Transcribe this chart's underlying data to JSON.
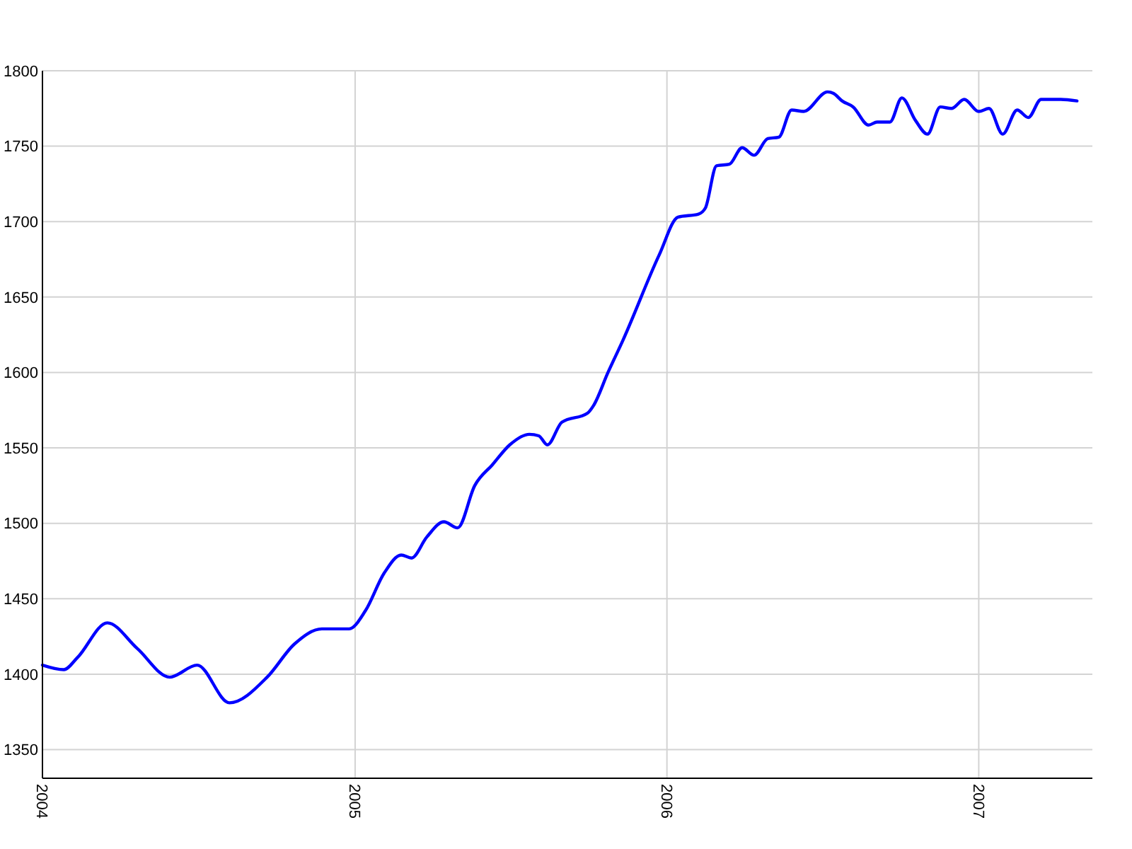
{
  "chart_data": {
    "type": "line",
    "xlim": [
      "2004-01-01",
      "2007-05-14"
    ],
    "ylim": [
      1331,
      1800
    ],
    "xticks": [
      "2004",
      "2005",
      "2006",
      "2007"
    ],
    "yticks": [
      1350,
      1400,
      1450,
      1500,
      1550,
      1600,
      1650,
      1700,
      1750,
      1800
    ],
    "grid": true,
    "marker": "none",
    "line_style": "solid",
    "series": [
      {
        "color": "#0000ff",
        "x": [
          "2004-01-01",
          "2004-01-26",
          "2004-02-11",
          "2004-03-17",
          "2004-04-21",
          "2004-05-29",
          "2004-06-30",
          "2004-08-07",
          "2004-09-20",
          "2004-10-22",
          "2004-11-23",
          "2004-12-25",
          "2005-01-13",
          "2005-02-04",
          "2005-02-24",
          "2005-03-08",
          "2005-03-26",
          "2005-04-15",
          "2005-05-01",
          "2005-05-21",
          "2005-06-11",
          "2005-07-01",
          "2005-07-24",
          "2005-08-04",
          "2005-08-14",
          "2005-08-31",
          "2005-09-30",
          "2005-10-07",
          "2005-10-24",
          "2005-11-11",
          "2005-12-23",
          "2006-01-14",
          "2006-02-07",
          "2006-02-15",
          "2006-02-28",
          "2006-03-15",
          "2006-03-30",
          "2006-04-13",
          "2006-04-29",
          "2006-05-12",
          "2006-05-27",
          "2006-06-10",
          "2006-07-08",
          "2006-07-15",
          "2006-07-25",
          "2006-08-07",
          "2006-08-25",
          "2006-09-04",
          "2006-09-19",
          "2006-10-03",
          "2006-10-19",
          "2006-11-02",
          "2006-11-17",
          "2006-11-30",
          "2006-12-15",
          "2007-01-01",
          "2007-01-13",
          "2007-01-29",
          "2007-02-15",
          "2007-02-28",
          "2007-03-15",
          "2007-04-07",
          "2007-04-26"
        ],
        "values": [
          1406,
          1403,
          1411,
          1434,
          1417,
          1398,
          1406,
          1381,
          1398,
          1420,
          1430,
          1430,
          1442,
          1467,
          1479,
          1477,
          1491,
          1501,
          1497,
          1525,
          1539,
          1552,
          1559,
          1558,
          1552,
          1567,
          1573,
          1578,
          1600,
          1622,
          1678,
          1703,
          1705,
          1709,
          1737,
          1738,
          1749,
          1744,
          1755,
          1756,
          1774,
          1773,
          1786,
          1785,
          1780,
          1776,
          1764,
          1766,
          1766,
          1782,
          1767,
          1758,
          1776,
          1775,
          1781,
          1773,
          1775,
          1758,
          1774,
          1769,
          1781,
          1781,
          1780
        ]
      }
    ]
  }
}
